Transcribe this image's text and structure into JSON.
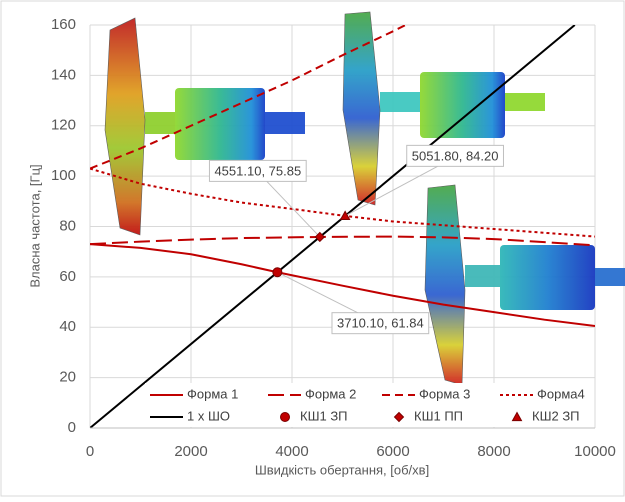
{
  "chart_data": {
    "type": "line",
    "x_label": "Швидкість обертання, [об/хв]",
    "y_label": "Власна частота, [Гц]",
    "xlim": [
      0,
      10000
    ],
    "xticks": [
      0,
      2000,
      4000,
      6000,
      8000,
      10000
    ],
    "ylim": [
      0,
      160
    ],
    "yticks": [
      0,
      20,
      40,
      60,
      80,
      100,
      120,
      140,
      160
    ],
    "legend": "bottom",
    "series": [
      {
        "name": "Форма 1",
        "color": "#c00000",
        "style": "solid",
        "x": [
          0,
          1000,
          2000,
          3000,
          3710.1,
          5000,
          6000,
          7000,
          8000,
          9000,
          10000
        ],
        "values": [
          73,
          71.5,
          69,
          65,
          61.84,
          56.5,
          52.5,
          49,
          46,
          43,
          40.5
        ]
      },
      {
        "name": "Форма 2",
        "color": "#c00000",
        "style": "long-dash",
        "x": [
          0,
          1000,
          2000,
          3000,
          4551.1,
          6000,
          7000,
          8000,
          9000,
          10000
        ],
        "values": [
          73,
          74,
          74.8,
          75.4,
          75.85,
          76,
          75.7,
          75,
          73.8,
          72.5
        ]
      },
      {
        "name": "Форма 3",
        "color": "#c00000",
        "style": "dash",
        "x": [
          0,
          1000,
          2000,
          3000,
          4000,
          5000,
          6000,
          6250
        ],
        "values": [
          103,
          111,
          120,
          129,
          138,
          148,
          157.5,
          160
        ]
      },
      {
        "name": "Форма4",
        "color": "#c00000",
        "style": "dot",
        "x": [
          0,
          1000,
          2000,
          3000,
          4000,
          5051.8,
          6000,
          7000,
          8000,
          9000,
          10000
        ],
        "values": [
          103,
          97,
          93,
          89.5,
          87,
          84.2,
          82,
          80.5,
          79,
          77.5,
          76
        ]
      },
      {
        "name": "1 x ШО",
        "color": "#000000",
        "style": "solid",
        "x": [
          0,
          9600
        ],
        "values": [
          0,
          160
        ]
      },
      {
        "name": "КШ1 ЗП",
        "color": "#c00000",
        "marker": "circle",
        "x": [
          3710.1
        ],
        "values": [
          61.84
        ],
        "value_labels": [
          "3710.10, 61.84"
        ]
      },
      {
        "name": "КШ1 ПП",
        "color": "#c00000",
        "marker": "diamond",
        "x": [
          4551.1
        ],
        "values": [
          75.85
        ],
        "value_labels": [
          "4551.10, 75.85"
        ]
      },
      {
        "name": "КШ2 ЗП",
        "color": "#c00000",
        "marker": "triangle",
        "x": [
          5051.8
        ],
        "values": [
          84.2
        ],
        "value_labels": [
          "5051.80, 84.20"
        ]
      }
    ]
  }
}
